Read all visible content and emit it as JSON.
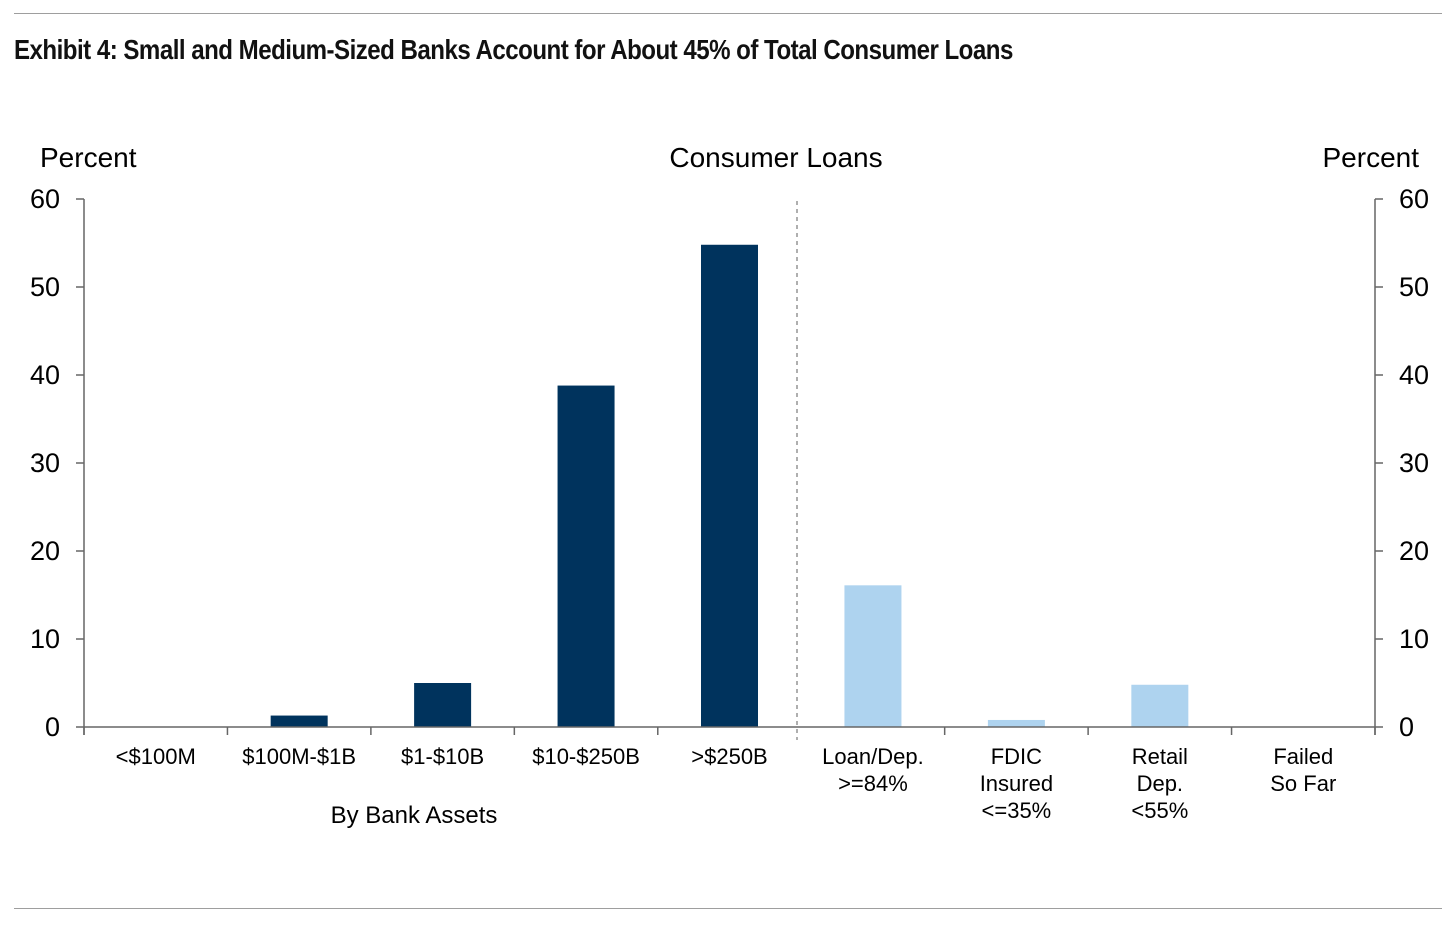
{
  "title": "Exhibit 4: Small and Medium-Sized Banks Account for About 45% of Total Consumer Loans",
  "chart_data": {
    "type": "bar",
    "title": "Consumer Loans",
    "ylabel_left": "Percent",
    "ylabel_right": "Percent",
    "ylim": [
      0,
      60
    ],
    "yticks": [
      0,
      10,
      20,
      30,
      40,
      50,
      60
    ],
    "group_label": "By Bank Assets",
    "categories": [
      [
        "<$100M"
      ],
      [
        "$100M-$1B"
      ],
      [
        "$1-$10B"
      ],
      [
        "$10-$250B"
      ],
      [
        ">$250B"
      ],
      [
        "Loan/Dep.",
        ">=84%"
      ],
      [
        "FDIC",
        "Insured",
        "<=35%"
      ],
      [
        "Retail",
        "Dep.",
        "<55%"
      ],
      [
        "Failed",
        "So Far"
      ]
    ],
    "values": [
      0,
      1.3,
      5.0,
      38.8,
      54.8,
      16.1,
      0.8,
      4.8,
      0
    ],
    "colors": [
      "#00335d",
      "#00335d",
      "#00335d",
      "#00335d",
      "#00335d",
      "#aed3ef",
      "#aed3ef",
      "#aed3ef",
      "#aed3ef"
    ],
    "separator_after_index": 4,
    "grid": false
  }
}
